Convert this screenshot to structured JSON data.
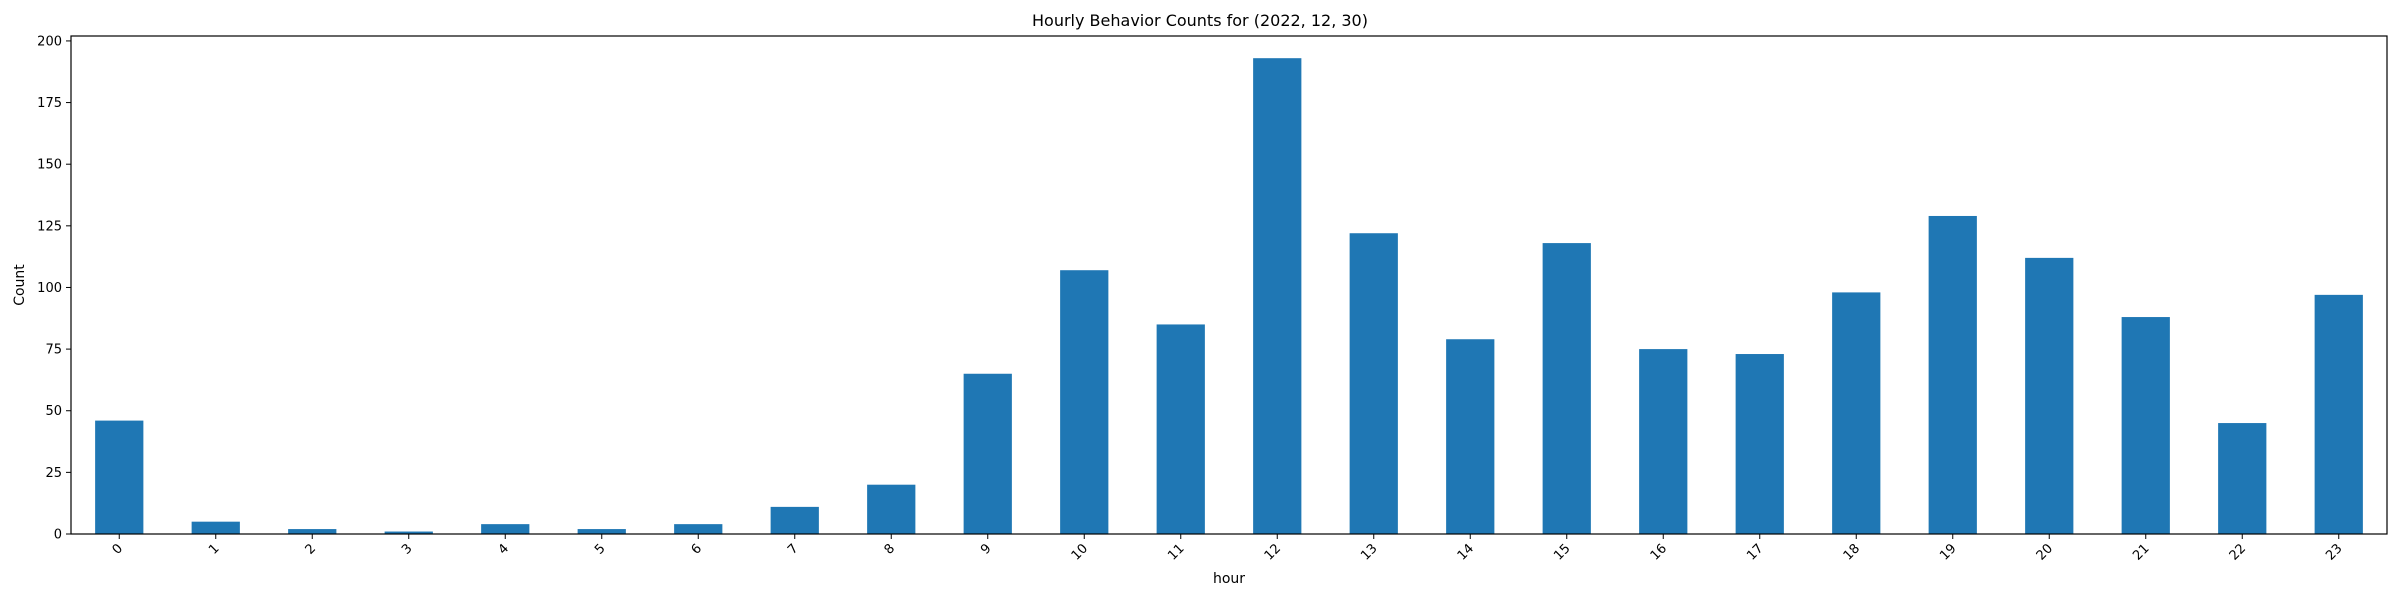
{
  "chart_data": {
    "type": "bar",
    "title": "Hourly Behavior Counts for (2022, 12, 30)",
    "xlabel": "hour",
    "ylabel": "Count",
    "categories": [
      "0",
      "1",
      "2",
      "3",
      "4",
      "5",
      "6",
      "7",
      "8",
      "9",
      "10",
      "11",
      "12",
      "13",
      "14",
      "15",
      "16",
      "17",
      "18",
      "19",
      "20",
      "21",
      "22",
      "23"
    ],
    "values": [
      46,
      5,
      2,
      1,
      4,
      2,
      4,
      11,
      20,
      65,
      107,
      85,
      193,
      122,
      79,
      118,
      75,
      73,
      98,
      129,
      112,
      88,
      45,
      97
    ],
    "ylim": [
      0,
      202
    ],
    "yticks": [
      0,
      25,
      50,
      75,
      100,
      125,
      150,
      175,
      200
    ],
    "ytick_labels": [
      "0",
      "25",
      "50",
      "75",
      "100",
      "125",
      "150",
      "175",
      "200"
    ],
    "grid": false,
    "legend": "none",
    "bar_color": "#1f77b4",
    "xtick_rotation_deg": 45
  }
}
